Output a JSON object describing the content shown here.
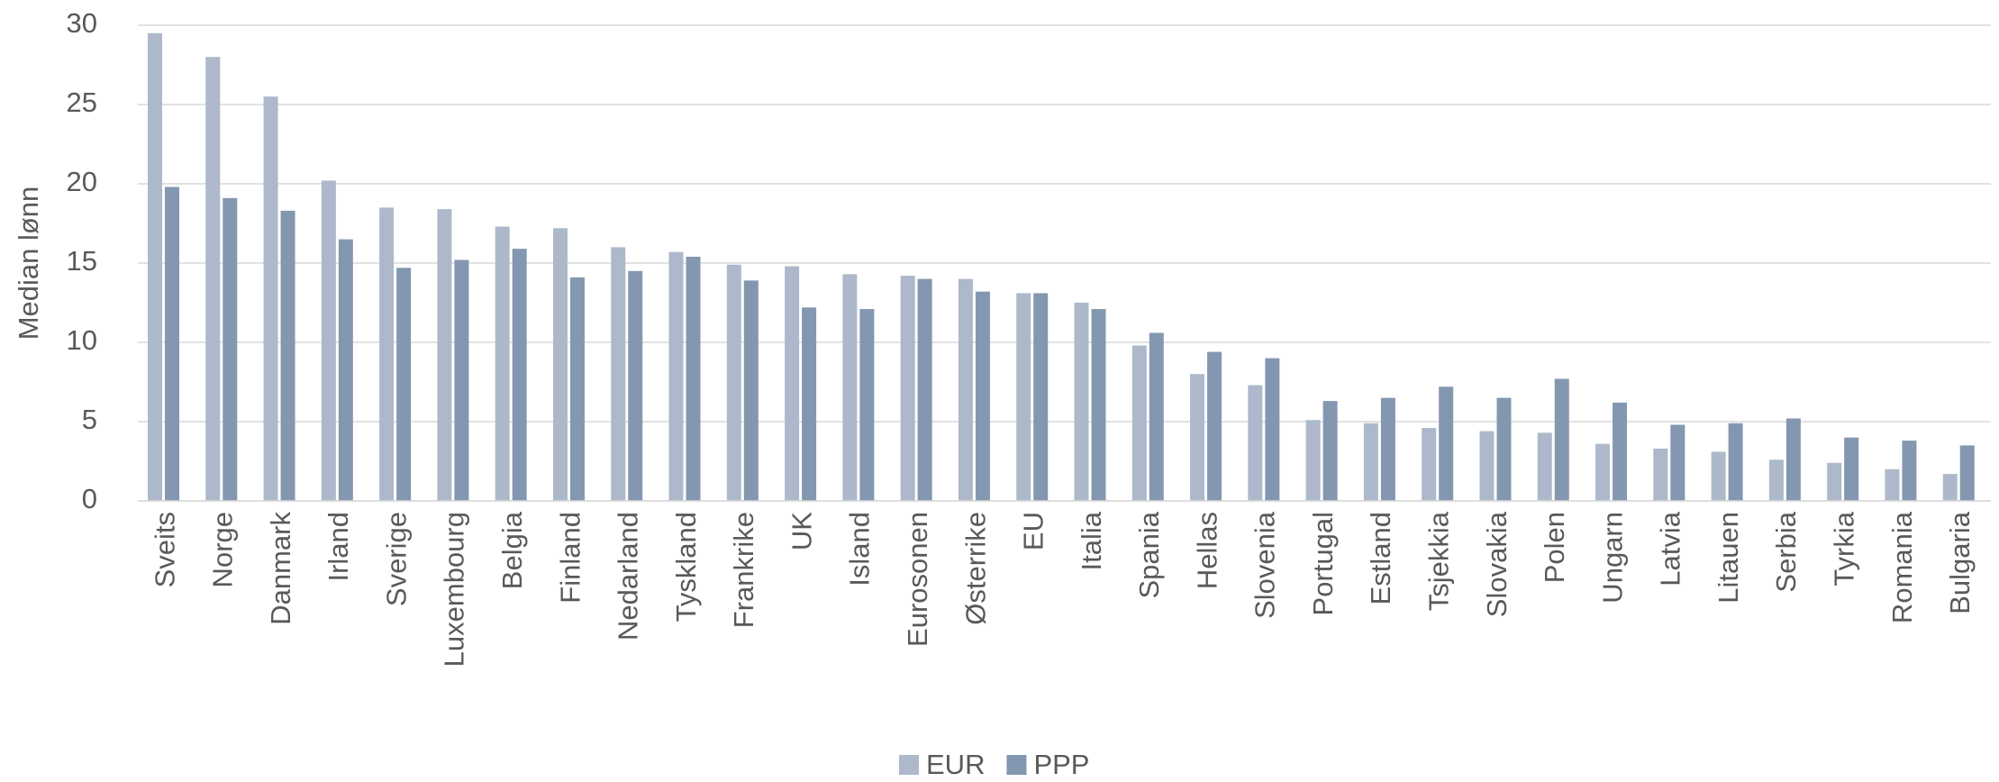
{
  "chart_data": {
    "type": "bar",
    "y_label": "Median lønn",
    "categories": [
      "Sveits",
      "Norge",
      "Danmark",
      "Irland",
      "Sverige",
      "Luxembourg",
      "Belgia",
      "Finland",
      "Nedarland",
      "Tyskland",
      "Frankrike",
      "UK",
      "Island",
      "Eurosonen",
      "Østerrike",
      "EU",
      "Italia",
      "Spania",
      "Hellas",
      "Slovenia",
      "Portugal",
      "Estland",
      "Tsjekkia",
      "Slovakia",
      "Polen",
      "Ungarn",
      "Latvia",
      "Litauen",
      "Serbia",
      "Tyrkia",
      "Romania",
      "Bulgaria"
    ],
    "series": [
      {
        "name": "EUR",
        "color": "#adb9ca",
        "values": [
          29.5,
          28.0,
          25.5,
          20.2,
          18.5,
          18.4,
          17.3,
          17.2,
          16.0,
          15.7,
          14.9,
          14.8,
          14.3,
          14.2,
          14.0,
          13.1,
          12.5,
          9.8,
          8.0,
          7.3,
          5.1,
          4.9,
          4.6,
          4.4,
          4.3,
          3.6,
          3.3,
          3.1,
          2.6,
          2.4,
          2.0,
          1.7
        ]
      },
      {
        "name": "PPP",
        "color": "#8497b0",
        "values": [
          19.8,
          19.1,
          18.3,
          16.5,
          14.7,
          15.2,
          15.9,
          14.1,
          14.5,
          15.4,
          13.9,
          12.2,
          12.1,
          14.0,
          13.2,
          13.1,
          12.1,
          10.6,
          9.4,
          9.0,
          6.3,
          6.5,
          7.2,
          6.5,
          7.7,
          6.2,
          4.8,
          4.9,
          5.2,
          4.0,
          3.8,
          3.5
        ]
      }
    ],
    "ylim": [
      0,
      30
    ],
    "yticks": [
      0,
      5,
      10,
      15,
      20,
      25,
      30
    ],
    "grid": true,
    "legend": "bottom"
  }
}
